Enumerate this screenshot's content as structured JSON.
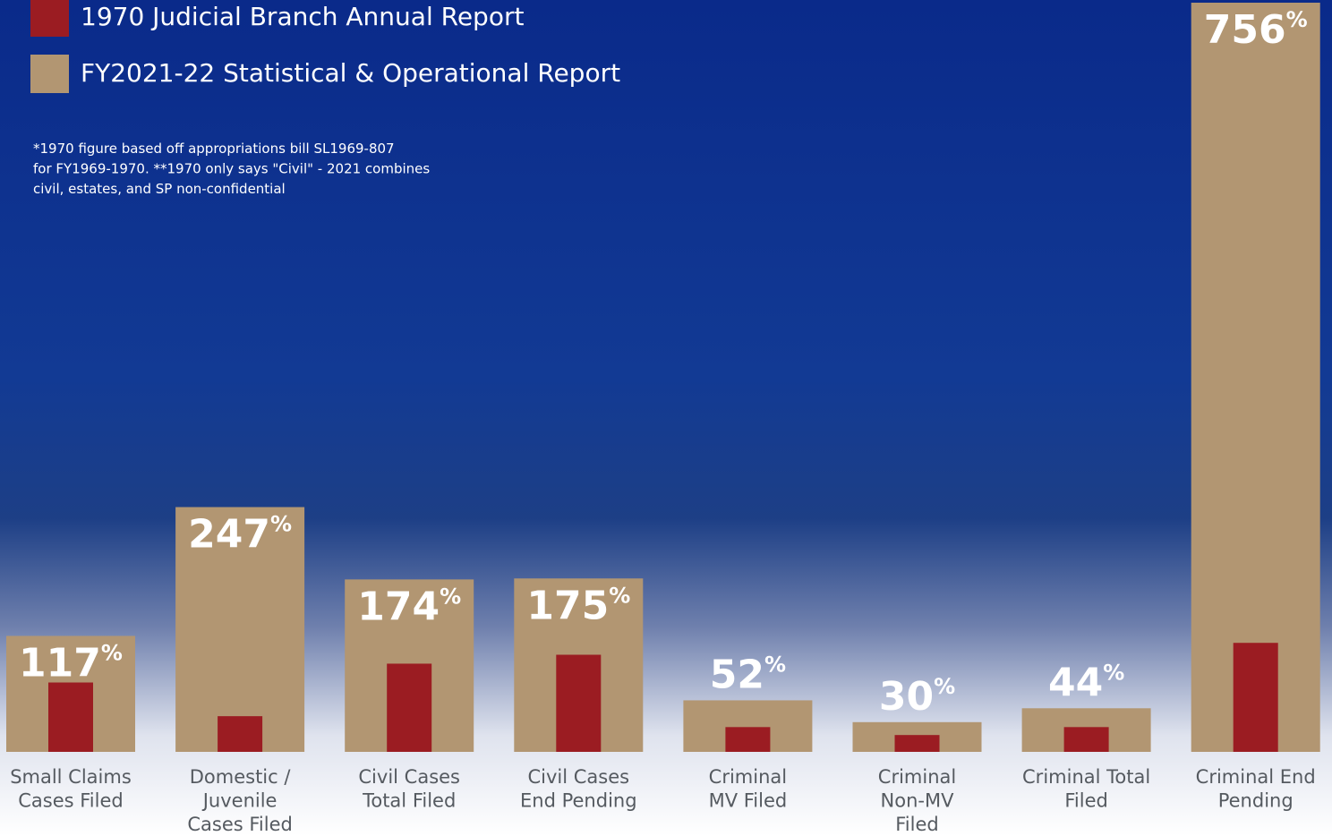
{
  "chart_data": {
    "type": "bar",
    "series": [
      {
        "name": "1970 Judicial Branch Annual Report",
        "color": "#9b1c22",
        "values": [
          70,
          36,
          89,
          98,
          25,
          17,
          25,
          110
        ]
      },
      {
        "name": "FY2021-22 Statistical & Operational Report",
        "color": "#b29672",
        "values": [
          117,
          247,
          174,
          175,
          52,
          30,
          44,
          756
        ],
        "value_labels": [
          "117%",
          "247%",
          "174%",
          "175%",
          "52%",
          "30%",
          "44%",
          "756%"
        ]
      }
    ],
    "categories": [
      "Small Claims\nCases Filed",
      "Domestic /\nJuvenile\nCases Filed",
      "Civil Cases\nTotal Filed",
      "Civil Cases\nEnd Pending",
      "Criminal\nMV Filed",
      "Criminal\nNon-MV\nFiled",
      "Criminal Total\nFiled",
      "Criminal End\nPending"
    ],
    "footnote": [
      "*1970 figure based off appropriations bill SL1969-807",
      "for FY1969-1970. **1970 only says \"Civil\" - 2021 combines",
      "civil, estates, and SP non-confidential"
    ]
  }
}
